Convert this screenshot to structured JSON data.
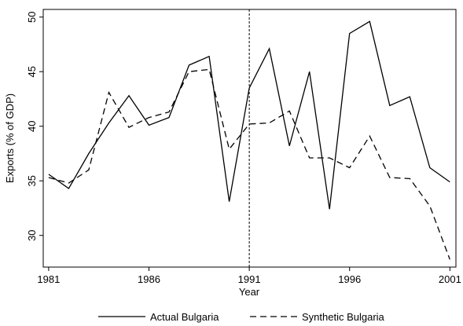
{
  "chart_data": {
    "type": "line",
    "x_label": "Year",
    "y_label": "Exports (% of GDP)",
    "x": [
      1981,
      1982,
      1983,
      1984,
      1985,
      1986,
      1987,
      1988,
      1989,
      1990,
      1991,
      1992,
      1993,
      1994,
      1995,
      1996,
      1997,
      1998,
      1999,
      2000,
      2001
    ],
    "series": [
      {
        "name": "Actual Bulgaria",
        "color": "#000000",
        "line_style": "solid",
        "values": [
          35.6,
          34.3,
          37.5,
          40.3,
          42.8,
          40.1,
          40.8,
          45.6,
          46.4,
          33.1,
          43.5,
          47.1,
          38.2,
          45.0,
          32.4,
          48.5,
          49.6,
          41.9,
          42.7,
          36.2,
          34.9
        ]
      },
      {
        "name": "Synthetic Bulgaria",
        "color": "#000000",
        "line_style": "dashed",
        "values": [
          35.3,
          34.8,
          36.0,
          43.1,
          39.9,
          40.8,
          41.3,
          45.0,
          45.2,
          37.9,
          40.2,
          40.3,
          41.4,
          37.1,
          37.1,
          36.2,
          39.1,
          35.3,
          35.2,
          32.7,
          27.8
        ]
      }
    ],
    "reference_line_x": 1991,
    "xlim": [
      1980.73,
      2001.3
    ],
    "ylim": [
      27.1,
      50.7
    ],
    "xticks": [
      1981,
      1986,
      1991,
      1996,
      2001
    ],
    "yticks": [
      30,
      35,
      40,
      45,
      50
    ],
    "legend_position": "bottom"
  }
}
